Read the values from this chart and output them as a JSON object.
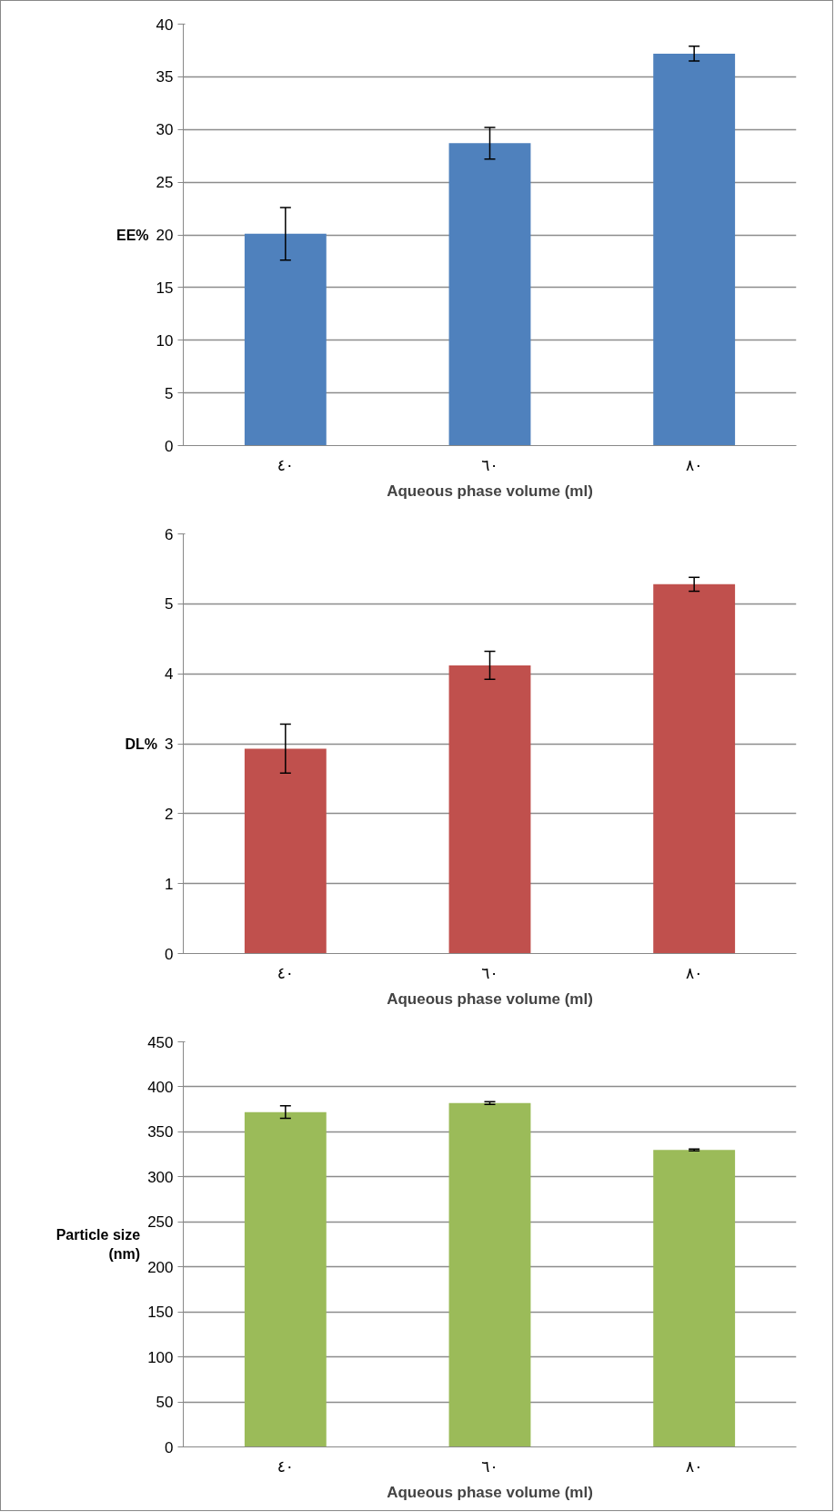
{
  "chart_data": [
    {
      "type": "bar",
      "xlabel": "Aqueous phase volume (ml)",
      "ylabel": "EE%",
      "categories": [
        "٤٠",
        "٦٠",
        "٨٠"
      ],
      "values": [
        20.1,
        28.7,
        37.2
      ],
      "errors": [
        2.5,
        1.5,
        0.7
      ],
      "color": "#4f81bd",
      "ylim": [
        0,
        40
      ],
      "yticks": [
        0,
        5,
        10,
        15,
        20,
        25,
        30,
        35,
        40
      ],
      "grid": "y"
    },
    {
      "type": "bar",
      "xlabel": "Aqueous phase volume (ml)",
      "ylabel": "DL%",
      "categories": [
        "٤٠",
        "٦٠",
        "٨٠"
      ],
      "values": [
        2.93,
        4.12,
        5.28
      ],
      "errors": [
        0.35,
        0.2,
        0.1
      ],
      "color": "#c0504d",
      "ylim": [
        0,
        6
      ],
      "yticks": [
        0,
        1,
        2,
        3,
        4,
        5,
        6
      ],
      "grid": "y"
    },
    {
      "type": "bar",
      "xlabel": "Aqueous phase volume (ml)",
      "ylabel": "Particle size (nm)",
      "categories": [
        "٤٠",
        "٦٠",
        "٨٠"
      ],
      "values": [
        372,
        382,
        330
      ],
      "errors": [
        7,
        1.5,
        1
      ],
      "color": "#9bbb59",
      "ylim": [
        0,
        450
      ],
      "yticks": [
        0,
        50,
        100,
        150,
        200,
        250,
        300,
        350,
        400,
        450
      ],
      "grid": "y"
    }
  ]
}
